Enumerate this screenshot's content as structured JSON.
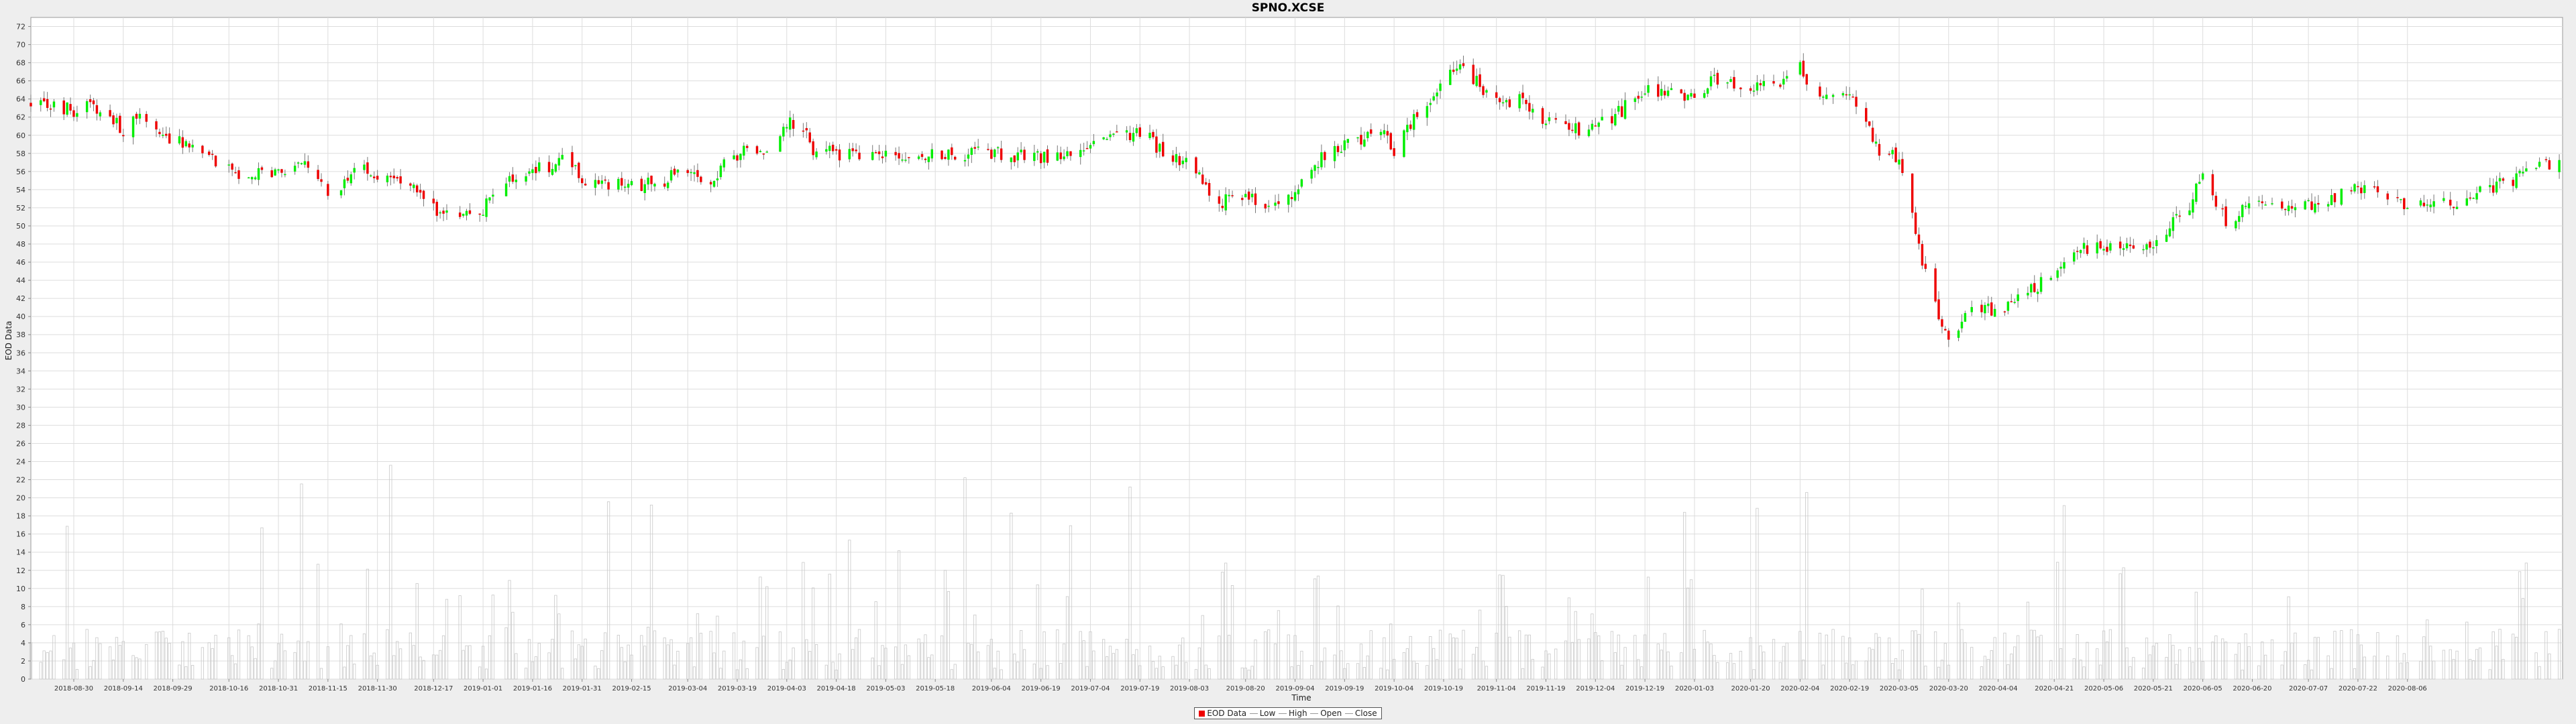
{
  "chart_data": {
    "type": "candlestick",
    "title": "SPNO.XCSE",
    "xlabel": "Time",
    "ylabel": "EOD Data",
    "ylim": [
      0,
      73
    ],
    "grid": true,
    "y_ticks": [
      0,
      2,
      4,
      6,
      8,
      10,
      12,
      14,
      16,
      18,
      20,
      22,
      24,
      26,
      28,
      30,
      32,
      34,
      36,
      38,
      40,
      42,
      44,
      46,
      48,
      50,
      52,
      54,
      56,
      58,
      60,
      62,
      64,
      66,
      68,
      70,
      72
    ],
    "x_ticks": [
      "2018-08-30",
      "2018-09-14",
      "2018-09-29",
      "2018-10-16",
      "2018-10-31",
      "2018-11-15",
      "2018-11-30",
      "2018-12-17",
      "2019-01-01",
      "2019-01-16",
      "2019-01-31",
      "2019-02-15",
      "2019-03-04",
      "2019-03-19",
      "2019-04-03",
      "2019-04-18",
      "2019-05-03",
      "2019-05-18",
      "2019-06-04",
      "2019-06-19",
      "2019-07-04",
      "2019-07-19",
      "2019-08-03",
      "2019-08-20",
      "2019-09-04",
      "2019-09-19",
      "2019-10-04",
      "2019-10-19",
      "2019-11-04",
      "2019-11-19",
      "2019-12-04",
      "2019-12-19",
      "2020-01-03",
      "2020-01-20",
      "2020-02-04",
      "2020-02-19",
      "2020-03-05",
      "2020-03-20",
      "2020-04-04",
      "2020-04-21",
      "2020-05-06",
      "2020-05-21",
      "2020-06-05",
      "2020-06-20",
      "2020-07-07",
      "2020-07-22",
      "2020-08-06"
    ],
    "x_range": [
      "2018-08-17",
      "2020-09-22"
    ],
    "close_anchors": [
      [
        "2018-08-17",
        63.5
      ],
      [
        "2018-08-30",
        62.8
      ],
      [
        "2018-09-05",
        63.5
      ],
      [
        "2018-09-14",
        60.5
      ],
      [
        "2018-09-19",
        62.0
      ],
      [
        "2018-09-29",
        59.5
      ],
      [
        "2018-10-05",
        58.5
      ],
      [
        "2018-10-16",
        56.0
      ],
      [
        "2018-10-31",
        55.5
      ],
      [
        "2018-11-08",
        56.5
      ],
      [
        "2018-11-15",
        53.5
      ],
      [
        "2018-11-25",
        56.5
      ],
      [
        "2018-11-30",
        55.5
      ],
      [
        "2018-12-10",
        54.5
      ],
      [
        "2018-12-20",
        51.0
      ],
      [
        "2019-01-01",
        52.0
      ],
      [
        "2019-01-10",
        55.5
      ],
      [
        "2019-01-16",
        56.0
      ],
      [
        "2019-01-27",
        57.5
      ],
      [
        "2019-01-31",
        55.0
      ],
      [
        "2019-02-15",
        54.5
      ],
      [
        "2019-02-25",
        55.0
      ],
      [
        "2019-03-04",
        56.5
      ],
      [
        "2019-03-10",
        55.0
      ],
      [
        "2019-03-19",
        58.0
      ],
      [
        "2019-03-27",
        58.5
      ],
      [
        "2019-04-03",
        61.5
      ],
      [
        "2019-04-08",
        61.0
      ],
      [
        "2019-04-10",
        58.5
      ],
      [
        "2019-04-18",
        58.0
      ],
      [
        "2019-05-03",
        57.5
      ],
      [
        "2019-05-18",
        58.0
      ],
      [
        "2019-06-04",
        58.0
      ],
      [
        "2019-06-19",
        57.5
      ],
      [
        "2019-07-04",
        59.0
      ],
      [
        "2019-07-19",
        60.5
      ],
      [
        "2019-07-25",
        58.5
      ],
      [
        "2019-08-03",
        57.0
      ],
      [
        "2019-08-12",
        52.5
      ],
      [
        "2019-08-20",
        53.5
      ],
      [
        "2019-08-27",
        52.0
      ],
      [
        "2019-09-04",
        54.0
      ],
      [
        "2019-09-12",
        57.5
      ],
      [
        "2019-09-19",
        59.0
      ],
      [
        "2019-10-01",
        60.5
      ],
      [
        "2019-10-04",
        58.5
      ],
      [
        "2019-10-11",
        62.5
      ],
      [
        "2019-10-19",
        66.0
      ],
      [
        "2019-10-25",
        67.5
      ],
      [
        "2019-11-04",
        63.5
      ],
      [
        "2019-11-12",
        64.0
      ],
      [
        "2019-11-19",
        61.5
      ],
      [
        "2019-11-26",
        60.5
      ],
      [
        "2019-12-04",
        61.0
      ],
      [
        "2019-12-11",
        62.5
      ],
      [
        "2019-12-19",
        65.0
      ],
      [
        "2020-01-03",
        64.5
      ],
      [
        "2020-01-08",
        66.0
      ],
      [
        "2020-01-20",
        65.5
      ],
      [
        "2020-01-27",
        65.0
      ],
      [
        "2020-02-04",
        67.5
      ],
      [
        "2020-02-08",
        65.0
      ],
      [
        "2020-02-19",
        65.0
      ],
      [
        "2020-02-28",
        58.0
      ],
      [
        "2020-03-05",
        57.5
      ],
      [
        "2020-03-12",
        46.0
      ],
      [
        "2020-03-20",
        37.0
      ],
      [
        "2020-03-27",
        41.0
      ],
      [
        "2020-04-04",
        40.5
      ],
      [
        "2020-04-12",
        43.0
      ],
      [
        "2020-04-21",
        44.0
      ],
      [
        "2020-04-28",
        47.5
      ],
      [
        "2020-05-06",
        47.5
      ],
      [
        "2020-05-21",
        48.0
      ],
      [
        "2020-06-01",
        52.0
      ],
      [
        "2020-06-05",
        56.0
      ],
      [
        "2020-06-12",
        50.5
      ],
      [
        "2020-06-20",
        52.5
      ],
      [
        "2020-07-07",
        52.5
      ],
      [
        "2020-07-15",
        53.0
      ],
      [
        "2020-07-22",
        54.5
      ],
      [
        "2020-08-06",
        52.5
      ],
      [
        "2020-08-15",
        52.0
      ],
      [
        "2020-09-20",
        57.0
      ]
    ],
    "volume_axis_note": "Volume bars share the same axis scale (0–26 range)",
    "colors": {
      "up": "#00ee00",
      "down": "#ee0000",
      "volume": "#c8c8c8",
      "grid": "#dddddd",
      "plot_bg": "#ffffff"
    },
    "legend": [
      {
        "label": "EOD Data",
        "type": "box",
        "color": "#ee0000"
      },
      {
        "label": "Low",
        "type": "line",
        "color": "#999999"
      },
      {
        "label": "High",
        "type": "line",
        "color": "#999999"
      },
      {
        "label": "Open",
        "type": "line",
        "color": "#999999"
      },
      {
        "label": "Close",
        "type": "line",
        "color": "#999999"
      }
    ],
    "legend_position": "bottom-center"
  }
}
